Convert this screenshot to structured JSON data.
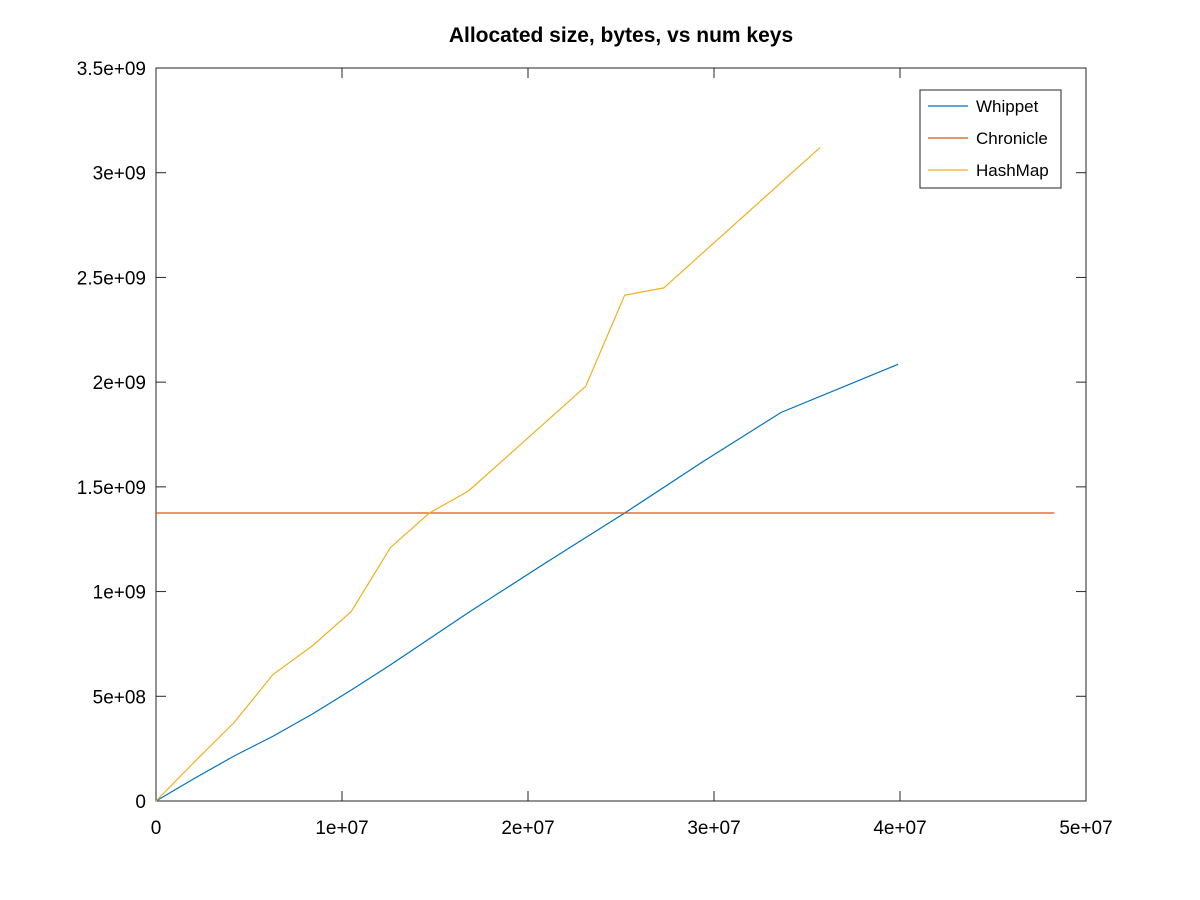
{
  "chart_data": {
    "type": "line",
    "title": "Allocated size, bytes, vs num keys",
    "xlabel": "",
    "ylabel": "",
    "xlim": [
      0,
      50000000
    ],
    "ylim": [
      0,
      3500000000
    ],
    "x_ticks": [
      0,
      10000000,
      20000000,
      30000000,
      40000000,
      50000000
    ],
    "x_tick_labels": [
      "0",
      "1e+07",
      "2e+07",
      "3e+07",
      "4e+07",
      "5e+07"
    ],
    "y_ticks": [
      0,
      500000000,
      1000000000,
      1500000000,
      2000000000,
      2500000000,
      3000000000,
      3500000000
    ],
    "y_tick_labels": [
      "0",
      "5e+08",
      "1e+09",
      "1.5e+09",
      "2e+09",
      "2.5e+09",
      "3e+09",
      "3.5e+09"
    ],
    "grid": false,
    "legend_position": "top-right",
    "series": [
      {
        "name": "Whippet",
        "color": "#0072BD",
        "points": [
          [
            0,
            0
          ],
          [
            2100000,
            110000000
          ],
          [
            4200000,
            215000000
          ],
          [
            6300000,
            310000000
          ],
          [
            8400000,
            415000000
          ],
          [
            10500000,
            530000000
          ],
          [
            12600000,
            650000000
          ],
          [
            16800000,
            900000000
          ],
          [
            21000000,
            1140000000
          ],
          [
            25200000,
            1375000000
          ],
          [
            29400000,
            1620000000
          ],
          [
            33600000,
            1855000000
          ],
          [
            39900000,
            2085000000
          ]
        ]
      },
      {
        "name": "Chronicle",
        "color": "#D95319",
        "points": [
          [
            0,
            1375000000
          ],
          [
            48300000,
            1375000000
          ]
        ]
      },
      {
        "name": "HashMap",
        "color": "#EDB120",
        "points": [
          [
            0,
            0
          ],
          [
            2100000,
            190000000
          ],
          [
            4200000,
            375000000
          ],
          [
            6300000,
            605000000
          ],
          [
            8400000,
            740000000
          ],
          [
            10500000,
            905000000
          ],
          [
            12600000,
            1210000000
          ],
          [
            14700000,
            1375000000
          ],
          [
            16800000,
            1480000000
          ],
          [
            23100000,
            1980000000
          ],
          [
            25200000,
            2415000000
          ],
          [
            27300000,
            2450000000
          ],
          [
            35700000,
            3120000000
          ]
        ]
      }
    ]
  }
}
